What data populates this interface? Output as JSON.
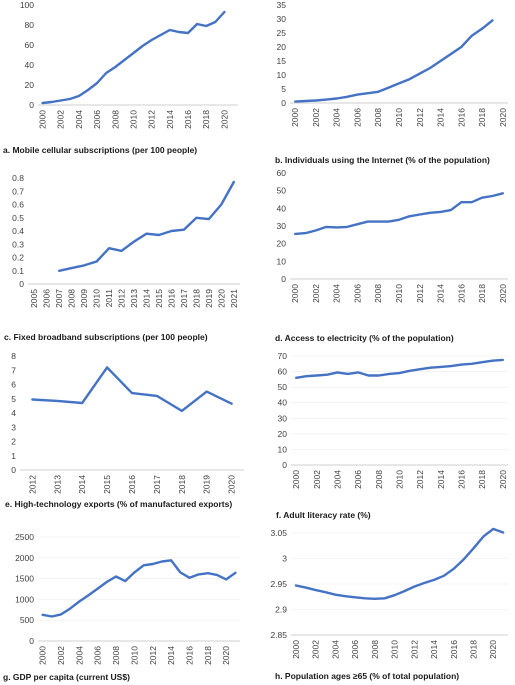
{
  "chart_data": [
    {
      "id": "a",
      "type": "line",
      "caption": "a. Mobile cellular subscriptions (per 100 people)",
      "x": [
        2000,
        2001,
        2002,
        2003,
        2004,
        2005,
        2006,
        2007,
        2008,
        2009,
        2010,
        2011,
        2012,
        2013,
        2014,
        2015,
        2016,
        2017,
        2018,
        2019,
        2020,
        2021
      ],
      "xticks": [
        "2000",
        "2002",
        "2004",
        "2006",
        "2008",
        "2010",
        "2012",
        "2014",
        "2016",
        "2018",
        "2020"
      ],
      "values": [
        2,
        3,
        4.5,
        6,
        9,
        15,
        22,
        32,
        38,
        45,
        52,
        59,
        65,
        70,
        75,
        73,
        72,
        81,
        79,
        83,
        93,
        null
      ],
      "ylim": [
        0,
        100
      ],
      "yticks": [
        0,
        20,
        40,
        60,
        80,
        100
      ],
      "ytick_labels": [
        "0",
        "20",
        "40",
        "60",
        "80",
        "100"
      ],
      "grid": false
    },
    {
      "id": "b",
      "type": "line",
      "caption": "b. Individuals using the Internet (% of the population)",
      "x": [
        2000,
        2001,
        2002,
        2003,
        2004,
        2005,
        2006,
        2007,
        2008,
        2009,
        2010,
        2011,
        2012,
        2013,
        2014,
        2015,
        2016,
        2017,
        2018,
        2019,
        2020
      ],
      "xticks": [
        "2000",
        "2002",
        "2004",
        "2006",
        "2008",
        "2010",
        "2012",
        "2014",
        "2016",
        "2018",
        "2020"
      ],
      "values": [
        0.5,
        0.7,
        0.9,
        1.2,
        1.6,
        2.2,
        3,
        3.5,
        4,
        5.5,
        7,
        8.5,
        10.5,
        12.5,
        15,
        17.5,
        20,
        24,
        26.5,
        29.5,
        null
      ],
      "ylim": [
        0,
        35
      ],
      "yticks": [
        0,
        5,
        10,
        15,
        20,
        25,
        30,
        35
      ],
      "ytick_labels": [
        "0",
        "5",
        "10",
        "15",
        "20",
        "25",
        "30",
        "35"
      ],
      "grid": false
    },
    {
      "id": "c",
      "type": "line",
      "caption": "c. Fixed broadband subscriptions (per 100 people)",
      "x": [
        2005,
        2006,
        2007,
        2008,
        2009,
        2010,
        2011,
        2012,
        2013,
        2014,
        2015,
        2016,
        2017,
        2018,
        2019,
        2020,
        2021
      ],
      "xticks": [
        "2005",
        "2006",
        "2007",
        "2008",
        "2009",
        "2010",
        "2011",
        "2012",
        "2013",
        "2014",
        "2015",
        "2016",
        "2017",
        "2018",
        "2019",
        "2020",
        "2021"
      ],
      "values": [
        null,
        null,
        0.1,
        0.12,
        0.14,
        0.17,
        0.27,
        0.25,
        0.32,
        0.38,
        0.37,
        0.4,
        0.41,
        0.5,
        0.49,
        0.6,
        0.77
      ],
      "ylim": [
        0,
        0.8
      ],
      "yticks": [
        0,
        0.1,
        0.2,
        0.3,
        0.4,
        0.5,
        0.6,
        0.7,
        0.8
      ],
      "ytick_labels": [
        "0",
        "0.1",
        "0.2",
        "0.3",
        "0.4",
        "0.5",
        "0.6",
        "0.7",
        "0.8"
      ],
      "grid": false
    },
    {
      "id": "d",
      "type": "line",
      "caption": "d. Access to electricity (% of the population)",
      "x": [
        2000,
        2001,
        2002,
        2003,
        2004,
        2005,
        2006,
        2007,
        2008,
        2009,
        2010,
        2011,
        2012,
        2013,
        2014,
        2015,
        2016,
        2017,
        2018,
        2019,
        2020
      ],
      "xticks": [
        "2000",
        "2002",
        "2004",
        "2006",
        "2008",
        "2010",
        "2012",
        "2014",
        "2016",
        "2018",
        "2020"
      ],
      "values": [
        25.5,
        26,
        27.5,
        29.5,
        29.2,
        29.5,
        31,
        32.5,
        32.5,
        32.5,
        33.5,
        35.5,
        36.5,
        37.5,
        38,
        39,
        43.5,
        43.5,
        46,
        47,
        48.5
      ],
      "ylim": [
        0,
        60
      ],
      "yticks": [
        0,
        10,
        20,
        30,
        40,
        50,
        60
      ],
      "ytick_labels": [
        "0",
        "10",
        "20",
        "30",
        "40",
        "50",
        "60"
      ],
      "grid": false
    },
    {
      "id": "e",
      "type": "line",
      "caption": "e. High-technology exports (% of manufactured exports)",
      "x": [
        2012,
        2013,
        2014,
        2015,
        2016,
        2017,
        2018,
        2019,
        2020
      ],
      "xticks": [
        "2012",
        "2013",
        "2014",
        "2015",
        "2016",
        "2017",
        "2018",
        "2019",
        "2020"
      ],
      "values": [
        4.95,
        4.85,
        4.7,
        7.2,
        5.4,
        5.2,
        4.15,
        5.5,
        4.65
      ],
      "ylim": [
        0,
        8
      ],
      "yticks": [
        0,
        1,
        2,
        3,
        4,
        5,
        6,
        7,
        8
      ],
      "ytick_labels": [
        "0",
        "1",
        "2",
        "3",
        "4",
        "5",
        "6",
        "7",
        "8"
      ],
      "grid": false
    },
    {
      "id": "f",
      "type": "line",
      "caption": "f. Adult literacy rate (%)",
      "x": [
        2000,
        2001,
        2002,
        2003,
        2004,
        2005,
        2006,
        2007,
        2008,
        2009,
        2010,
        2011,
        2012,
        2013,
        2014,
        2015,
        2016,
        2017,
        2018,
        2019,
        2020
      ],
      "xticks": [
        "2000",
        "2002",
        "2004",
        "2006",
        "2008",
        "2010",
        "2012",
        "2014",
        "2016",
        "2018",
        "2020"
      ],
      "values": [
        56,
        57,
        57.5,
        58,
        59.5,
        58.5,
        59.5,
        57.5,
        57.5,
        58.5,
        59,
        60.5,
        61.5,
        62.5,
        63,
        63.5,
        64.5,
        65,
        66,
        67,
        67.5
      ],
      "ylim": [
        0,
        70
      ],
      "yticks": [
        0,
        10,
        20,
        30,
        40,
        50,
        60,
        70
      ],
      "ytick_labels": [
        "0",
        "10",
        "20",
        "30",
        "40",
        "50",
        "60",
        "70"
      ],
      "grid": true
    },
    {
      "id": "g",
      "type": "line",
      "caption": "g. GDP per capita (current US$)",
      "x": [
        2000,
        2001,
        2002,
        2003,
        2004,
        2005,
        2006,
        2007,
        2008,
        2009,
        2010,
        2011,
        2012,
        2013,
        2014,
        2015,
        2016,
        2017,
        2018,
        2019,
        2020,
        2021
      ],
      "xticks": [
        "2000",
        "2002",
        "2004",
        "2006",
        "2008",
        "2010",
        "2012",
        "2014",
        "2016",
        "2018",
        "2020"
      ],
      "values": [
        630,
        590,
        640,
        780,
        950,
        1100,
        1260,
        1420,
        1550,
        1440,
        1650,
        1820,
        1850,
        1910,
        1940,
        1650,
        1520,
        1600,
        1630,
        1590,
        1480,
        1640
      ],
      "ylim": [
        0,
        2500
      ],
      "yticks": [
        0,
        500,
        1000,
        1500,
        2000,
        2500
      ],
      "ytick_labels": [
        "0",
        "500",
        "1000",
        "1500",
        "2000",
        "2500"
      ],
      "grid": true
    },
    {
      "id": "h",
      "type": "line",
      "caption": "h. Population ages ≥65 (% of total population)",
      "x": [
        2000,
        2001,
        2002,
        2003,
        2004,
        2005,
        2006,
        2007,
        2008,
        2009,
        2010,
        2011,
        2012,
        2013,
        2014,
        2015,
        2016,
        2017,
        2018,
        2019,
        2020,
        2021
      ],
      "xticks": [
        "2000",
        "2002",
        "2004",
        "2006",
        "2008",
        "2010",
        "2012",
        "2014",
        "2016",
        "2018",
        "2020"
      ],
      "values": [
        2.947,
        2.943,
        2.938,
        2.934,
        2.929,
        2.926,
        2.924,
        2.922,
        2.921,
        2.922,
        2.928,
        2.936,
        2.945,
        2.952,
        2.958,
        2.966,
        2.98,
        2.998,
        3.02,
        3.043,
        3.058,
        3.051
      ],
      "ylim": [
        2.85,
        3.05
      ],
      "yticks": [
        2.85,
        2.9,
        2.95,
        3.0,
        3.05
      ],
      "ytick_labels": [
        "2.85",
        "2.9",
        "2.95",
        "3",
        "3.05"
      ],
      "grid": true
    }
  ]
}
